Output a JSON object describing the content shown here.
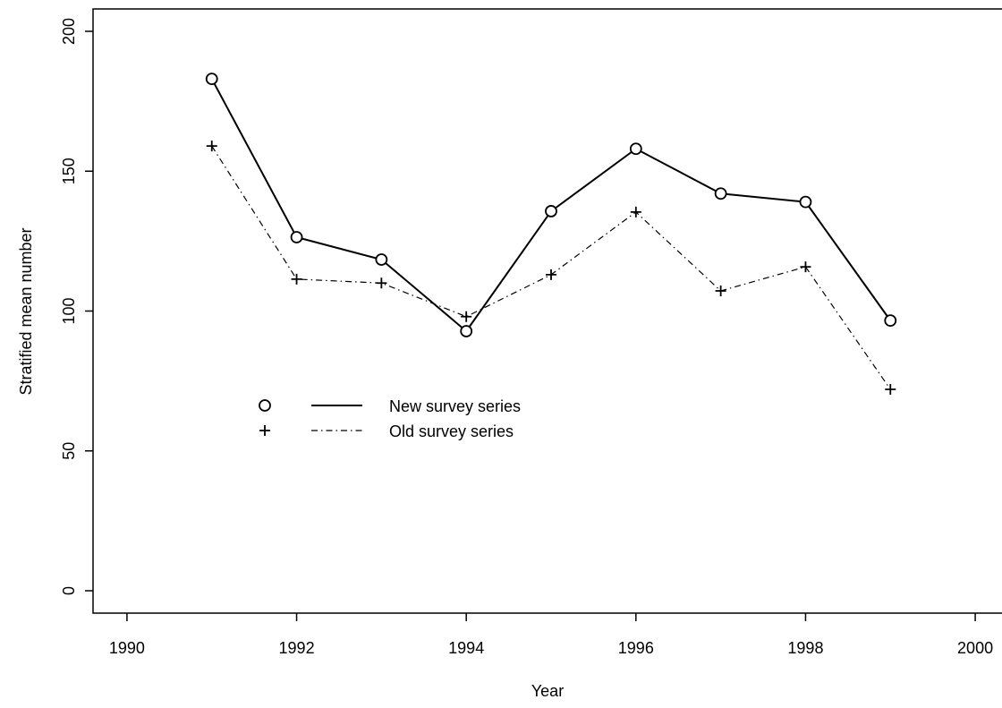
{
  "chart_data": {
    "type": "line",
    "x_label": "Year",
    "y_label": "Stratified mean number",
    "x": [
      1991,
      1992,
      1993,
      1994,
      1995,
      1996,
      1997,
      1998,
      1999
    ],
    "series": [
      {
        "name": "New survey series",
        "color": "#000000",
        "linestyle": "solid",
        "marker": "circle",
        "values": [
          183,
          126.4,
          118.4,
          92.8,
          135.7,
          158,
          142,
          139,
          96.6
        ]
      },
      {
        "name": "Old survey series",
        "color": "#000000",
        "linestyle": "dashdot",
        "marker": "plus",
        "values": [
          159,
          111.4,
          110,
          98,
          113,
          135.4,
          107.2,
          115.8,
          72
        ]
      }
    ],
    "xlim": [
      1989.6,
      2000.4
    ],
    "xticks": [
      1990,
      1992,
      1994,
      1996,
      1998,
      2000
    ],
    "ylim": [
      -8,
      208
    ],
    "yticks": [
      0,
      50,
      100,
      150,
      200
    ],
    "grid": false,
    "legend": "center-left"
  }
}
